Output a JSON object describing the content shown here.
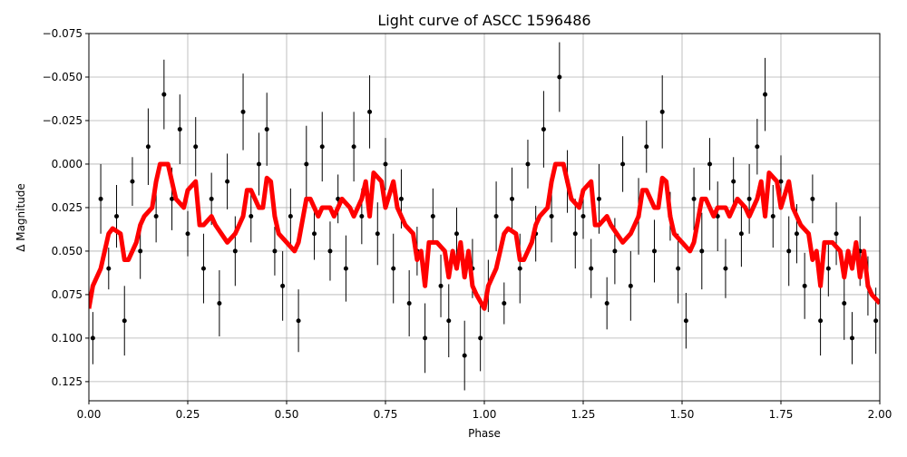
{
  "chart_data": {
    "type": "scatter",
    "title": "Light curve of ASCC 1596486",
    "xlabel": "Phase",
    "ylabel": "Δ Magnitude",
    "xlim": [
      0,
      2
    ],
    "ylim": [
      0.136,
      -0.075
    ],
    "xticks": [
      {
        "value": 0,
        "label": "0.00"
      },
      {
        "value": 0.25,
        "label": "0.25"
      },
      {
        "value": 0.5,
        "label": "0.50"
      },
      {
        "value": 0.75,
        "label": "0.75"
      },
      {
        "value": 1,
        "label": "1.00"
      },
      {
        "value": 1.25,
        "label": "1.25"
      },
      {
        "value": 1.5,
        "label": "1.50"
      },
      {
        "value": 1.75,
        "label": "1.75"
      },
      {
        "value": 2,
        "label": "2.00"
      }
    ],
    "yticks": [
      {
        "value": -0.075,
        "label": "−0.075"
      },
      {
        "value": -0.05,
        "label": "−0.050"
      },
      {
        "value": -0.025,
        "label": "−0.025"
      },
      {
        "value": 0,
        "label": "0.000"
      },
      {
        "value": 0.025,
        "label": "0.025"
      },
      {
        "value": 0.05,
        "label": "0.050"
      },
      {
        "value": 0.075,
        "label": "0.075"
      },
      {
        "value": 0.1,
        "label": "0.100"
      },
      {
        "value": 0.125,
        "label": "0.125"
      }
    ],
    "grid": true,
    "series": [
      {
        "color": "#000000",
        "x": [
          0.01,
          0.03,
          0.05,
          0.07,
          0.09,
          0.11,
          0.13,
          0.15,
          0.17,
          0.19,
          0.21,
          0.23,
          0.25,
          0.27,
          0.29,
          0.31,
          0.33,
          0.35,
          0.37,
          0.39,
          0.41,
          0.43,
          0.45,
          0.47,
          0.49,
          0.51,
          0.53,
          0.55,
          0.57,
          0.59,
          0.61,
          0.63,
          0.65,
          0.67,
          0.69,
          0.71,
          0.73,
          0.75,
          0.77,
          0.79,
          0.81,
          0.83,
          0.85,
          0.87,
          0.89,
          0.91,
          0.93,
          0.95,
          0.97,
          0.99,
          1.01,
          1.03,
          1.05,
          1.07,
          1.09,
          1.11,
          1.13,
          1.15,
          1.17,
          1.19,
          1.21,
          1.23,
          1.25,
          1.27,
          1.29,
          1.31,
          1.33,
          1.35,
          1.37,
          1.39,
          1.41,
          1.43,
          1.45,
          1.47,
          1.49,
          1.51,
          1.53,
          1.55,
          1.57,
          1.59,
          1.61,
          1.63,
          1.65,
          1.67,
          1.69,
          1.71,
          1.73,
          1.75,
          1.77,
          1.79,
          1.81,
          1.83,
          1.85,
          1.87,
          1.89,
          1.91,
          1.93,
          1.95,
          1.97,
          1.99
        ],
        "values": [
          0.1,
          0.02,
          0.06,
          0.03,
          0.09,
          0.01,
          0.05,
          -0.01,
          0.03,
          -0.04,
          0.02,
          -0.02,
          0.04,
          -0.01,
          0.06,
          0.02,
          0.08,
          0.01,
          0.05,
          -0.03,
          0.03,
          0.0,
          -0.02,
          0.05,
          0.07,
          0.03,
          0.09,
          0.0,
          0.04,
          -0.01,
          0.05,
          0.02,
          0.06,
          -0.01,
          0.03,
          -0.03,
          0.04,
          0.0,
          0.06,
          0.02,
          0.08,
          0.05,
          0.1,
          0.03,
          0.07,
          0.09,
          0.04,
          0.11,
          0.06,
          0.1,
          0.07,
          0.03,
          0.08,
          0.02,
          0.06,
          0.0,
          0.04,
          -0.02,
          0.03,
          -0.05,
          0.01,
          0.04,
          0.03,
          0.06,
          0.02,
          0.08,
          0.05,
          0.0,
          0.07,
          0.03,
          -0.01,
          0.05,
          -0.03,
          0.03,
          0.06,
          0.09,
          0.02,
          0.05,
          0.0,
          0.03,
          0.06,
          0.01,
          0.04,
          0.02,
          -0.01,
          -0.04,
          0.03,
          0.01,
          0.05,
          0.04,
          0.07,
          0.02,
          0.09,
          0.06,
          0.04,
          0.08,
          0.1,
          0.05,
          0.07,
          0.09
        ],
        "errors": [
          0.015,
          0.02,
          0.012,
          0.018,
          0.02,
          0.014,
          0.016,
          0.022,
          0.015,
          0.02,
          0.018,
          0.02,
          0.013,
          0.017,
          0.02,
          0.015,
          0.019,
          0.016,
          0.02,
          0.022,
          0.015,
          0.018,
          0.021,
          0.014,
          0.02,
          0.016,
          0.018,
          0.022,
          0.015,
          0.02,
          0.017,
          0.014,
          0.019,
          0.02,
          0.016,
          0.021,
          0.018,
          0.015,
          0.02,
          0.017,
          0.019,
          0.014,
          0.02,
          0.016,
          0.018,
          0.021,
          0.015,
          0.02,
          0.017,
          0.019,
          0.015,
          0.02,
          0.012,
          0.018,
          0.02,
          0.014,
          0.016,
          0.022,
          0.015,
          0.02,
          0.018,
          0.02,
          0.013,
          0.017,
          0.02,
          0.015,
          0.019,
          0.016,
          0.02,
          0.022,
          0.015,
          0.018,
          0.021,
          0.014,
          0.02,
          0.016,
          0.018,
          0.022,
          0.015,
          0.02,
          0.017,
          0.014,
          0.019,
          0.02,
          0.016,
          0.021,
          0.018,
          0.015,
          0.02,
          0.017,
          0.019,
          0.014,
          0.02,
          0.016,
          0.018,
          0.021,
          0.015,
          0.02,
          0.017,
          0.019
        ]
      },
      {
        "color": "#ff0000",
        "x": [
          0.0,
          0.01,
          0.03,
          0.04,
          0.05,
          0.06,
          0.08,
          0.09,
          0.1,
          0.12,
          0.13,
          0.14,
          0.16,
          0.17,
          0.18,
          0.2,
          0.21,
          0.22,
          0.24,
          0.25,
          0.27,
          0.28,
          0.29,
          0.31,
          0.32,
          0.35,
          0.37,
          0.39,
          0.4,
          0.41,
          0.43,
          0.44,
          0.45,
          0.46,
          0.47,
          0.48,
          0.5,
          0.52,
          0.53,
          0.55,
          0.56,
          0.58,
          0.59,
          0.61,
          0.62,
          0.63,
          0.64,
          0.66,
          0.67,
          0.69,
          0.7,
          0.71,
          0.72,
          0.74,
          0.75,
          0.77,
          0.78,
          0.8,
          0.82,
          0.83,
          0.84,
          0.85,
          0.86,
          0.88,
          0.9,
          0.91,
          0.92,
          0.93,
          0.94,
          0.95,
          0.96,
          0.97,
          0.98,
          1.0,
          1.01,
          1.03,
          1.04,
          1.05,
          1.06,
          1.08,
          1.09,
          1.1,
          1.12,
          1.13,
          1.14,
          1.16,
          1.17,
          1.18,
          1.2,
          1.21,
          1.22,
          1.24,
          1.25,
          1.27,
          1.28,
          1.29,
          1.31,
          1.32,
          1.35,
          1.37,
          1.39,
          1.4,
          1.41,
          1.43,
          1.44,
          1.45,
          1.46,
          1.47,
          1.48,
          1.5,
          1.52,
          1.53,
          1.55,
          1.56,
          1.58,
          1.59,
          1.61,
          1.62,
          1.63,
          1.64,
          1.66,
          1.67,
          1.69,
          1.7,
          1.71,
          1.72,
          1.74,
          1.75,
          1.77,
          1.78,
          1.8,
          1.82,
          1.83,
          1.84,
          1.85,
          1.86,
          1.88,
          1.9,
          1.91,
          1.92,
          1.93,
          1.94,
          1.95,
          1.96,
          1.97,
          1.98,
          2.0
        ],
        "values": [
          0.083,
          0.07,
          0.06,
          0.05,
          0.04,
          0.037,
          0.04,
          0.055,
          0.055,
          0.045,
          0.035,
          0.03,
          0.025,
          0.01,
          0.0,
          0.0,
          0.01,
          0.02,
          0.025,
          0.015,
          0.01,
          0.035,
          0.035,
          0.03,
          0.035,
          0.045,
          0.04,
          0.03,
          0.015,
          0.015,
          0.025,
          0.025,
          0.008,
          0.01,
          0.03,
          0.04,
          0.045,
          0.05,
          0.045,
          0.02,
          0.02,
          0.03,
          0.025,
          0.025,
          0.03,
          0.025,
          0.02,
          0.025,
          0.03,
          0.02,
          0.01,
          0.03,
          0.005,
          0.01,
          0.025,
          0.01,
          0.025,
          0.035,
          0.04,
          0.055,
          0.05,
          0.07,
          0.045,
          0.045,
          0.05,
          0.065,
          0.05,
          0.06,
          0.045,
          0.065,
          0.05,
          0.07,
          0.075,
          0.083,
          0.07,
          0.06,
          0.05,
          0.04,
          0.037,
          0.04,
          0.055,
          0.055,
          0.045,
          0.035,
          0.03,
          0.025,
          0.01,
          0.0,
          0.0,
          0.01,
          0.02,
          0.025,
          0.015,
          0.01,
          0.035,
          0.035,
          0.03,
          0.035,
          0.045,
          0.04,
          0.03,
          0.015,
          0.015,
          0.025,
          0.025,
          0.008,
          0.01,
          0.03,
          0.04,
          0.045,
          0.05,
          0.045,
          0.02,
          0.02,
          0.03,
          0.025,
          0.025,
          0.03,
          0.025,
          0.02,
          0.025,
          0.03,
          0.02,
          0.01,
          0.03,
          0.005,
          0.01,
          0.025,
          0.01,
          0.025,
          0.035,
          0.04,
          0.055,
          0.05,
          0.07,
          0.045,
          0.045,
          0.05,
          0.065,
          0.05,
          0.06,
          0.045,
          0.065,
          0.05,
          0.07,
          0.075,
          0.08
        ]
      }
    ]
  }
}
